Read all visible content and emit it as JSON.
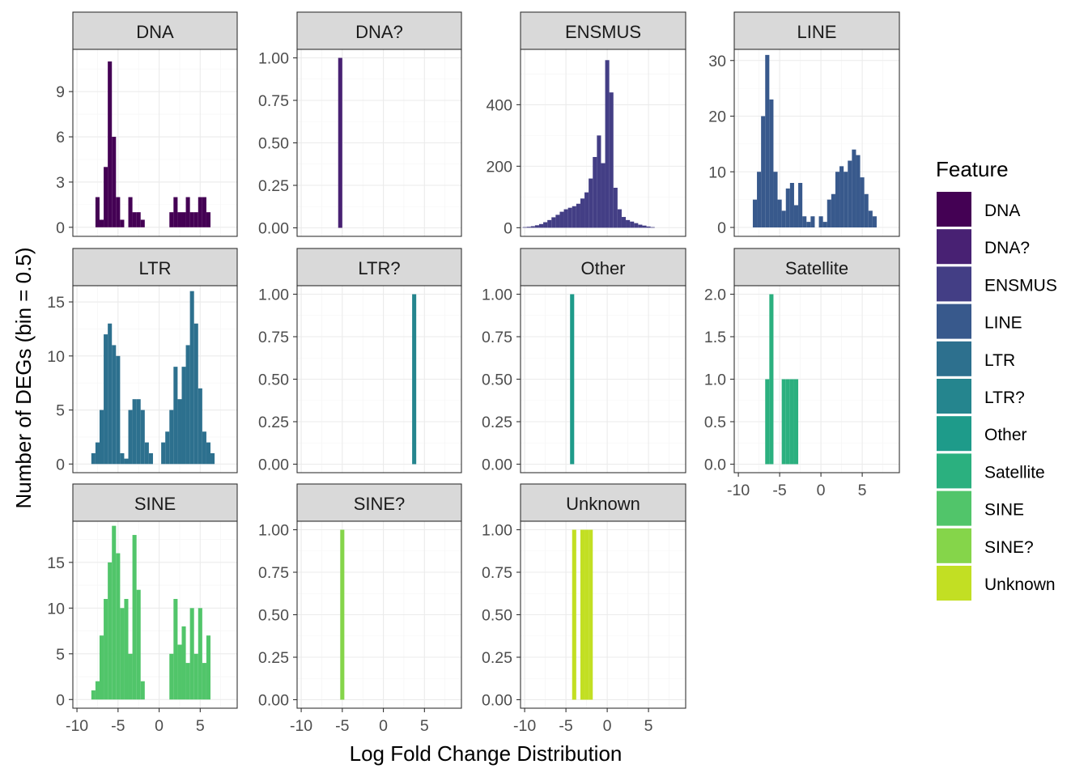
{
  "chart_data": {
    "type": "bar",
    "xlabel": "Log Fold Change Distribution",
    "ylabel": "Number of DEGs (bin = 0.5)",
    "binwidth": 0.5,
    "xlim": [
      -10.5,
      9.5
    ],
    "x_ticks": [
      -10,
      -5,
      0,
      5
    ],
    "legend": {
      "title": "Feature",
      "position": "right",
      "entries": [
        {
          "name": "DNA",
          "color": "#440154"
        },
        {
          "name": "DNA?",
          "color": "#482173"
        },
        {
          "name": "ENSMUS",
          "color": "#433E85"
        },
        {
          "name": "LINE",
          "color": "#38598C"
        },
        {
          "name": "LTR",
          "color": "#2D708E"
        },
        {
          "name": "LTR?",
          "color": "#25858E"
        },
        {
          "name": "Other",
          "color": "#1E9B8A"
        },
        {
          "name": "Satellite",
          "color": "#2BB07F"
        },
        {
          "name": "SINE",
          "color": "#51C56A"
        },
        {
          "name": "SINE?",
          "color": "#85D54A"
        },
        {
          "name": "Unknown",
          "color": "#C2DF23"
        }
      ]
    },
    "panels": [
      {
        "name": "DNA",
        "color": "#440154",
        "ylim": [
          -0.6,
          11.8
        ],
        "y_ticks": [
          0,
          3,
          6,
          9
        ],
        "bins": [
          [
            -7.5,
            2
          ],
          [
            -7,
            0.5
          ],
          [
            -6.5,
            4
          ],
          [
            -6,
            11
          ],
          [
            -5.5,
            6
          ],
          [
            -5,
            2
          ],
          [
            -4.5,
            0.5
          ],
          [
            -3.5,
            2
          ],
          [
            -3,
            1
          ],
          [
            -2.5,
            1
          ],
          [
            -2,
            0.5
          ],
          [
            1.5,
            1
          ],
          [
            2,
            2
          ],
          [
            2.5,
            1
          ],
          [
            3,
            1
          ],
          [
            3.5,
            2
          ],
          [
            4,
            1
          ],
          [
            4.5,
            1
          ],
          [
            5,
            2
          ],
          [
            5.5,
            2
          ],
          [
            6,
            1
          ]
        ]
      },
      {
        "name": "DNA?",
        "color": "#482173",
        "ylim": [
          -0.05,
          1.05
        ],
        "y_ticks": [
          0.0,
          0.25,
          0.5,
          0.75,
          1.0
        ],
        "y_tick_labels": [
          "0.00",
          "0.25",
          "0.50",
          "0.75",
          "1.00"
        ],
        "bins": [
          [
            -5.25,
            1
          ]
        ]
      },
      {
        "name": "ENSMUS",
        "color": "#433E85",
        "ylim": [
          -28,
          580
        ],
        "y_ticks": [
          0,
          200,
          400
        ],
        "bins": [
          [
            -10,
            2
          ],
          [
            -9.5,
            3
          ],
          [
            -9,
            5
          ],
          [
            -8.5,
            8
          ],
          [
            -8,
            12
          ],
          [
            -7.5,
            18
          ],
          [
            -7,
            25
          ],
          [
            -6.5,
            34
          ],
          [
            -6,
            42
          ],
          [
            -5.5,
            52
          ],
          [
            -5,
            60
          ],
          [
            -4.5,
            65
          ],
          [
            -4,
            70
          ],
          [
            -3.5,
            78
          ],
          [
            -3,
            95
          ],
          [
            -2.5,
            115
          ],
          [
            -2,
            160
          ],
          [
            -1.5,
            230
          ],
          [
            -1,
            300
          ],
          [
            -0.5,
            210
          ],
          [
            0,
            545
          ],
          [
            0.5,
            440
          ],
          [
            1,
            130
          ],
          [
            1.5,
            60
          ],
          [
            2,
            35
          ],
          [
            2.5,
            25
          ],
          [
            3,
            20
          ],
          [
            3.5,
            15
          ],
          [
            4,
            10
          ],
          [
            4.5,
            7
          ],
          [
            5,
            4
          ],
          [
            5.5,
            2
          ]
        ]
      },
      {
        "name": "LINE",
        "color": "#38598C",
        "ylim": [
          -1.6,
          32
        ],
        "y_ticks": [
          0,
          10,
          20,
          30
        ],
        "bins": [
          [
            -8,
            5
          ],
          [
            -7.5,
            10
          ],
          [
            -7,
            20
          ],
          [
            -6.5,
            31
          ],
          [
            -6,
            23
          ],
          [
            -5.5,
            10
          ],
          [
            -5,
            5
          ],
          [
            -4.5,
            3
          ],
          [
            -4,
            7
          ],
          [
            -3.5,
            8
          ],
          [
            -3,
            4
          ],
          [
            -2.5,
            8
          ],
          [
            -2,
            2
          ],
          [
            -1.5,
            1
          ],
          [
            -1,
            2
          ],
          [
            0,
            2
          ],
          [
            0.5,
            1
          ],
          [
            1,
            5
          ],
          [
            1.5,
            6
          ],
          [
            2,
            10
          ],
          [
            2.5,
            11
          ],
          [
            3,
            10
          ],
          [
            3.5,
            12
          ],
          [
            4,
            14
          ],
          [
            4.5,
            13
          ],
          [
            5,
            9
          ],
          [
            5.5,
            6
          ],
          [
            6,
            3
          ],
          [
            6.5,
            2
          ]
        ]
      },
      {
        "name": "LTR",
        "color": "#2D708E",
        "ylim": [
          -0.8,
          16.5
        ],
        "y_ticks": [
          0,
          5,
          10,
          15
        ],
        "bins": [
          [
            -8,
            1
          ],
          [
            -7.5,
            2
          ],
          [
            -7,
            5
          ],
          [
            -6.5,
            12
          ],
          [
            -6,
            13
          ],
          [
            -5.5,
            11
          ],
          [
            -5,
            10
          ],
          [
            -4.5,
            1
          ],
          [
            -4,
            0.5
          ],
          [
            -3.5,
            5
          ],
          [
            -3,
            6
          ],
          [
            -2.5,
            6
          ],
          [
            -2,
            5
          ],
          [
            -1.5,
            2
          ],
          [
            -1,
            1
          ],
          [
            0.5,
            2
          ],
          [
            1,
            3
          ],
          [
            1.5,
            5
          ],
          [
            2,
            9
          ],
          [
            2.5,
            6
          ],
          [
            3,
            9
          ],
          [
            3.5,
            11
          ],
          [
            4,
            16
          ],
          [
            4.5,
            13
          ],
          [
            5,
            7
          ],
          [
            5.5,
            3
          ],
          [
            6,
            2
          ],
          [
            6.5,
            1
          ]
        ]
      },
      {
        "name": "LTR?",
        "color": "#25858E",
        "ylim": [
          -0.05,
          1.05
        ],
        "y_ticks": [
          0.0,
          0.25,
          0.5,
          0.75,
          1.0
        ],
        "y_tick_labels": [
          "0.00",
          "0.25",
          "0.50",
          "0.75",
          "1.00"
        ],
        "bins": [
          [
            3.75,
            1
          ]
        ]
      },
      {
        "name": "Other",
        "color": "#1E9B8A",
        "ylim": [
          -0.05,
          1.05
        ],
        "y_ticks": [
          0.0,
          0.25,
          0.5,
          0.75,
          1.0
        ],
        "y_tick_labels": [
          "0.00",
          "0.25",
          "0.50",
          "0.75",
          "1.00"
        ],
        "bins": [
          [
            -4.25,
            1
          ]
        ]
      },
      {
        "name": "Satellite",
        "color": "#2BB07F",
        "ylim": [
          -0.1,
          2.1
        ],
        "y_ticks": [
          0.0,
          0.5,
          1.0,
          1.5,
          2.0
        ],
        "y_tick_labels": [
          "0.0",
          "0.5",
          "1.0",
          "1.5",
          "2.0"
        ],
        "bins": [
          [
            -6.5,
            1
          ],
          [
            -6,
            2
          ],
          [
            -4.5,
            1
          ],
          [
            -4,
            1
          ],
          [
            -3.5,
            1
          ],
          [
            -3,
            1
          ]
        ]
      },
      {
        "name": "SINE",
        "color": "#51C56A",
        "ylim": [
          -0.95,
          19.5
        ],
        "y_ticks": [
          0,
          5,
          10,
          15
        ],
        "bins": [
          [
            -8,
            1
          ],
          [
            -7.5,
            2
          ],
          [
            -7,
            7
          ],
          [
            -6.5,
            11
          ],
          [
            -6,
            15
          ],
          [
            -5.5,
            19
          ],
          [
            -5,
            16
          ],
          [
            -4.5,
            10
          ],
          [
            -4,
            11
          ],
          [
            -3.5,
            5
          ],
          [
            -3,
            18
          ],
          [
            -2.5,
            12
          ],
          [
            -2,
            2
          ],
          [
            1.5,
            5
          ],
          [
            2,
            11
          ],
          [
            2.5,
            6
          ],
          [
            3,
            8
          ],
          [
            3.5,
            4
          ],
          [
            4,
            10
          ],
          [
            4.5,
            5
          ],
          [
            5,
            10
          ],
          [
            5.5,
            4
          ],
          [
            6,
            7
          ]
        ]
      },
      {
        "name": "SINE?",
        "color": "#85D54A",
        "ylim": [
          -0.05,
          1.05
        ],
        "y_ticks": [
          0.0,
          0.25,
          0.5,
          0.75,
          1.0
        ],
        "y_tick_labels": [
          "0.00",
          "0.25",
          "0.50",
          "0.75",
          "1.00"
        ],
        "bins": [
          [
            -5,
            1
          ]
        ]
      },
      {
        "name": "Unknown",
        "color": "#C2DF23",
        "ylim": [
          -0.05,
          1.05
        ],
        "y_ticks": [
          0.0,
          0.25,
          0.5,
          0.75,
          1.0
        ],
        "y_tick_labels": [
          "0.00",
          "0.25",
          "0.50",
          "0.75",
          "1.00"
        ],
        "bins": [
          [
            -4,
            1
          ],
          [
            -3,
            1
          ],
          [
            -2.5,
            1
          ],
          [
            -2,
            1
          ]
        ]
      }
    ]
  }
}
